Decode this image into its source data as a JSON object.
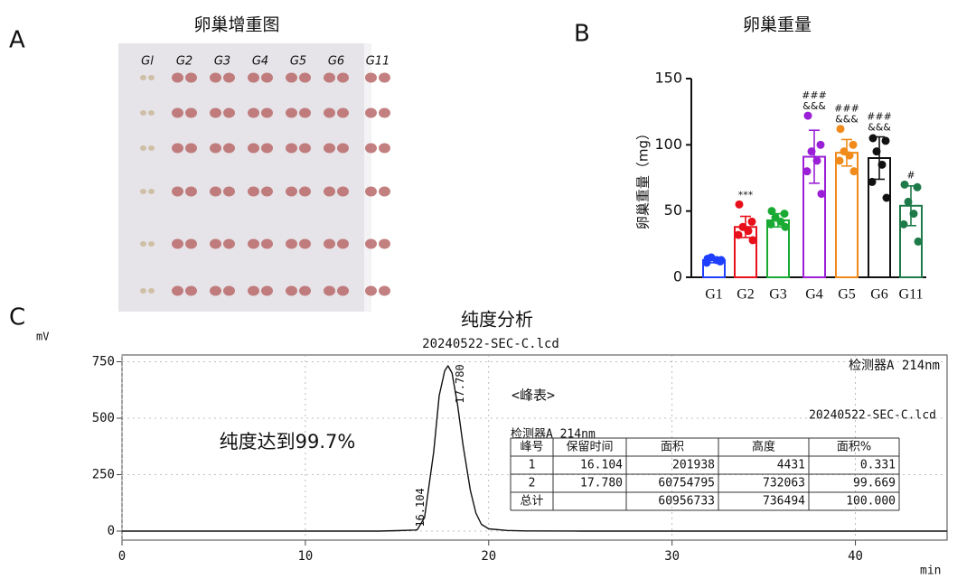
{
  "panel_labels": [
    "A",
    "B",
    "C"
  ],
  "photo": {
    "title": "卵巢增重图",
    "labels": [
      "Gl",
      "G2",
      "G3",
      "G4",
      "G5",
      "G6",
      "G11"
    ]
  },
  "chart_data": [
    {
      "type": "bar",
      "title": "卵巢重量",
      "ylabel": "卵巢重量（mg）",
      "categories": [
        "G1",
        "G2",
        "G3",
        "G4",
        "G5",
        "G6",
        "G11"
      ],
      "values": [
        13,
        38,
        43,
        91,
        94,
        90,
        54
      ],
      "errors": [
        2,
        8,
        5,
        20,
        10,
        16,
        15
      ],
      "colors": [
        "#1f3fff",
        "#e8101a",
        "#1aaa33",
        "#9b1fd6",
        "#f08a1a",
        "#111111",
        "#1f7a4a"
      ],
      "points": [
        [
          14,
          12,
          15,
          13,
          11,
          13
        ],
        [
          55,
          42,
          38,
          35,
          32,
          28
        ],
        [
          50,
          48,
          45,
          42,
          40,
          38
        ],
        [
          122,
          100,
          95,
          88,
          80,
          63
        ],
        [
          112,
          100,
          95,
          92,
          88,
          80
        ],
        [
          105,
          103,
          95,
          85,
          72,
          60
        ],
        [
          70,
          68,
          57,
          48,
          40,
          27
        ]
      ],
      "significance": [
        [],
        [
          "***"
        ],
        [],
        [
          "###",
          "&&&"
        ],
        [
          "###",
          "&&&"
        ],
        [
          "###",
          "&&&"
        ],
        [
          "#"
        ]
      ],
      "ylim": [
        0,
        150
      ],
      "yticks": [
        0,
        50,
        100,
        150
      ]
    },
    {
      "type": "line",
      "title": "纯度分析",
      "subtitle": "20240522-SEC-C.lcd",
      "ylabel": "mV",
      "xlabel": "min",
      "detector": "检测器A 214nm",
      "annotation": "纯度达到99.7%",
      "color": "#111111",
      "x": [
        0,
        14,
        15,
        16,
        16.104,
        16.5,
        17,
        17.3,
        17.6,
        17.78,
        18,
        18.3,
        18.6,
        19,
        19.3,
        19.6,
        20,
        21,
        22,
        25,
        30,
        45
      ],
      "y": [
        0,
        0,
        2,
        5,
        6,
        60,
        350,
        600,
        710,
        732,
        700,
        560,
        380,
        180,
        80,
        30,
        10,
        3,
        1,
        0,
        0,
        0
      ],
      "peaks": [
        {
          "x": 16.104,
          "label": "16.104"
        },
        {
          "x": 17.78,
          "label": "17.780"
        }
      ],
      "xlim": [
        0,
        45
      ],
      "xticks": [
        0,
        10,
        20,
        30,
        40
      ],
      "ylim": [
        -40,
        780
      ],
      "yticks": [
        0,
        250,
        500,
        750
      ],
      "table": {
        "title": "<峰表>",
        "file": "20240522-SEC-C.lcd",
        "detector": "检测器A 214nm",
        "header": [
          "峰号",
          "保留时间",
          "面积",
          "高度",
          "面积%"
        ],
        "rows": [
          [
            "1",
            "16.104",
            "201938",
            "4431",
            "0.331"
          ],
          [
            "2",
            "17.780",
            "60754795",
            "732063",
            "99.669"
          ],
          [
            "总计",
            null,
            "60956733",
            "736494",
            "100.000"
          ]
        ]
      }
    }
  ]
}
